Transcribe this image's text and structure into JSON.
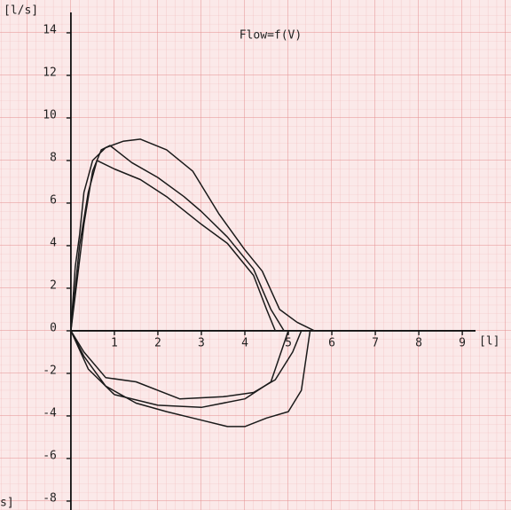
{
  "chart_data": {
    "type": "line",
    "title": "Flow=f(V)",
    "y_label": "[l/s]",
    "x_label": "[l]",
    "annotations": [
      "s]"
    ],
    "xlim": [
      -1.63,
      10.12
    ],
    "ylim": [
      -8.42,
      15.54
    ],
    "xticks": [
      1,
      2,
      3,
      4,
      5,
      6,
      7,
      8,
      9
    ],
    "yticks": [
      14,
      12,
      10,
      8,
      6,
      4,
      2,
      0,
      -2,
      -4,
      -6,
      -8
    ],
    "grid": true,
    "color": "#1a1a1a",
    "series": [
      {
        "x": [
          0,
          0.1,
          0.2,
          0.3,
          0.5,
          0.8,
          1.2,
          1.6,
          2.2,
          2.8,
          3.4,
          4.0,
          4.4,
          4.8,
          5.2,
          5.6
        ],
        "values": [
          0,
          3,
          4.5,
          6.5,
          8,
          8.6,
          8.9,
          9.0,
          8.5,
          7.5,
          5.5,
          3.8,
          2.8,
          1.0,
          0.4,
          0
        ]
      },
      {
        "x": [
          0,
          0.15,
          0.3,
          0.5,
          0.7,
          0.9,
          1.4,
          2.0,
          2.6,
          3.0,
          3.6,
          4.2,
          4.6,
          4.9
        ],
        "values": [
          0,
          2.5,
          5,
          7.5,
          8.5,
          8.7,
          7.9,
          7.2,
          6.3,
          5.6,
          4.4,
          2.9,
          1.0,
          0
        ]
      },
      {
        "x": [
          0,
          0.2,
          0.4,
          0.6,
          1.0,
          1.6,
          2.2,
          3.0,
          3.6,
          4.2,
          4.5,
          4.7
        ],
        "values": [
          0,
          4,
          6.5,
          8,
          7.6,
          7.1,
          6.3,
          5.0,
          4.1,
          2.6,
          1.0,
          0
        ]
      },
      {
        "x": [
          0,
          0.3,
          0.8,
          1.5,
          2.2,
          3.0,
          3.6,
          4.0,
          4.5,
          5.0,
          5.3,
          5.5
        ],
        "values": [
          0,
          -1.2,
          -2.6,
          -3.4,
          -3.8,
          -4.2,
          -4.5,
          -4.5,
          -4.1,
          -3.8,
          -2.8,
          0
        ]
      },
      {
        "x": [
          0,
          0.3,
          0.8,
          1.5,
          2.5,
          3.5,
          4.2,
          4.7,
          5.1,
          5.3
        ],
        "values": [
          0,
          -1.0,
          -2.2,
          -2.4,
          -3.2,
          -3.1,
          -2.9,
          -2.3,
          -1.0,
          0
        ]
      },
      {
        "x": [
          0,
          0.4,
          1.0,
          2.0,
          3.0,
          4.0,
          4.6,
          5.0
        ],
        "values": [
          0,
          -1.8,
          -3.0,
          -3.5,
          -3.6,
          -3.2,
          -2.4,
          0
        ]
      }
    ]
  }
}
